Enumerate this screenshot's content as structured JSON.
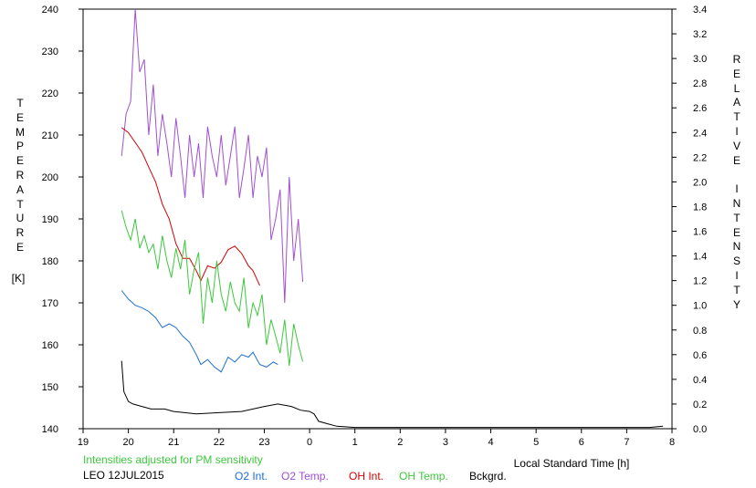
{
  "chart_data": {
    "type": "line",
    "title": "",
    "xlabel": "Local Standard Time [h]",
    "ylabel_left": "TEMPERATURE",
    "ylabel_left_unit": "[K]",
    "ylabel_right": "RELATIVE INTENSITY",
    "x_range": [
      19,
      32
    ],
    "x_tick_values": [
      19,
      20,
      21,
      22,
      23,
      24,
      25,
      26,
      27,
      28,
      29,
      30,
      31,
      32
    ],
    "x_tick_labels": [
      "19",
      "20",
      "21",
      "22",
      "23",
      "0",
      "1",
      "2",
      "3",
      "4",
      "5",
      "6",
      "7",
      "8"
    ],
    "ylim_left": [
      140,
      240
    ],
    "y_ticks_left": [
      "140",
      "150",
      "160",
      "170",
      "180",
      "190",
      "200",
      "210",
      "220",
      "230",
      "240"
    ],
    "ylim_right": [
      0.0,
      3.4
    ],
    "y_ticks_right": [
      "0.0",
      "0.2",
      "0.4",
      "0.6",
      "0.8",
      "1.0",
      "1.2",
      "1.4",
      "1.6",
      "1.8",
      "2.0",
      "2.2",
      "2.4",
      "2.6",
      "2.8",
      "3.0",
      "3.2",
      "3.4"
    ],
    "grid": false,
    "legend_placement": "bottom",
    "series": [
      {
        "name": "O2 Int.",
        "color": "#1e6ed2",
        "axis": "right",
        "x": [
          19.85,
          20.0,
          20.15,
          20.3,
          20.45,
          20.6,
          20.75,
          20.9,
          21.05,
          21.2,
          21.35,
          21.5,
          21.6,
          21.75,
          21.9,
          22.05,
          22.2,
          22.35,
          22.5,
          22.65,
          22.75,
          22.9,
          23.05,
          23.2,
          23.3
        ],
        "y": [
          1.12,
          1.05,
          1.0,
          0.98,
          0.95,
          0.9,
          0.82,
          0.85,
          0.82,
          0.75,
          0.7,
          0.6,
          0.52,
          0.56,
          0.5,
          0.46,
          0.58,
          0.54,
          0.6,
          0.58,
          0.62,
          0.52,
          0.5,
          0.54,
          0.52
        ]
      },
      {
        "name": "O2 Temp.",
        "color": "#a050d2",
        "axis": "left",
        "x": [
          19.85,
          19.95,
          20.05,
          20.15,
          20.25,
          20.35,
          20.45,
          20.55,
          20.65,
          20.75,
          20.85,
          20.95,
          21.05,
          21.15,
          21.25,
          21.35,
          21.45,
          21.55,
          21.65,
          21.75,
          21.85,
          21.95,
          22.05,
          22.15,
          22.25,
          22.35,
          22.45,
          22.55,
          22.65,
          22.75,
          22.85,
          22.95,
          23.05,
          23.15,
          23.25,
          23.35,
          23.45,
          23.55,
          23.65,
          23.75,
          23.85
        ],
        "y": [
          205,
          215,
          218,
          240,
          225,
          228,
          210,
          222,
          205,
          215,
          208,
          200,
          214,
          205,
          195,
          210,
          200,
          208,
          195,
          212,
          205,
          200,
          210,
          198,
          205,
          212,
          195,
          202,
          210,
          195,
          205,
          200,
          207,
          185,
          190,
          197,
          170,
          200,
          180,
          190,
          175
        ]
      },
      {
        "name": "OH Int.",
        "color": "#d20000",
        "axis": "right",
        "x": [
          19.85,
          20.0,
          20.15,
          20.3,
          20.45,
          20.6,
          20.75,
          20.9,
          21.05,
          21.2,
          21.35,
          21.5,
          21.6,
          21.75,
          21.9,
          22.05,
          22.2,
          22.35,
          22.5,
          22.65,
          22.75,
          22.9
        ],
        "y": [
          2.44,
          2.4,
          2.32,
          2.24,
          2.12,
          2.0,
          1.82,
          1.7,
          1.5,
          1.38,
          1.38,
          1.28,
          1.2,
          1.32,
          1.3,
          1.35,
          1.45,
          1.48,
          1.42,
          1.32,
          1.28,
          1.16
        ]
      },
      {
        "name": "OH Temp.",
        "color": "#3cc83c",
        "axis": "left",
        "x": [
          19.85,
          19.95,
          20.05,
          20.15,
          20.25,
          20.35,
          20.45,
          20.55,
          20.65,
          20.75,
          20.85,
          20.95,
          21.05,
          21.15,
          21.25,
          21.35,
          21.45,
          21.55,
          21.65,
          21.75,
          21.85,
          21.95,
          22.05,
          22.15,
          22.25,
          22.35,
          22.45,
          22.55,
          22.65,
          22.75,
          22.85,
          22.95,
          23.05,
          23.15,
          23.25,
          23.35,
          23.45,
          23.55,
          23.65,
          23.75,
          23.85
        ],
        "y": [
          192,
          188,
          185,
          190,
          183,
          186,
          182,
          184,
          178,
          186,
          180,
          176,
          183,
          178,
          185,
          172,
          178,
          182,
          165,
          176,
          170,
          180,
          172,
          168,
          175,
          170,
          168,
          176,
          164,
          170,
          167,
          172,
          160,
          166,
          162,
          158,
          166,
          155,
          165,
          160,
          156
        ]
      },
      {
        "name": "Bckgrd.",
        "color": "#000000",
        "axis": "right",
        "x": [
          19.85,
          19.9,
          20.0,
          20.1,
          20.3,
          20.5,
          20.8,
          21.0,
          21.5,
          22.0,
          22.5,
          23.0,
          23.3,
          23.6,
          23.8,
          24.0,
          24.1,
          24.2,
          24.4,
          24.6,
          25.0,
          26.0,
          27.0,
          28.0,
          29.0,
          30.0,
          31.0,
          31.5,
          31.8
        ],
        "y": [
          0.55,
          0.3,
          0.22,
          0.2,
          0.18,
          0.16,
          0.16,
          0.14,
          0.12,
          0.13,
          0.14,
          0.18,
          0.2,
          0.18,
          0.15,
          0.14,
          0.12,
          0.06,
          0.04,
          0.02,
          0.01,
          0.01,
          0.01,
          0.01,
          0.01,
          0.01,
          0.01,
          0.01,
          0.02
        ]
      }
    ]
  },
  "footer": {
    "adjust_note": "Intensities adjusted for PM sensitivity",
    "adjust_note_color": "#3cc83c",
    "station": "LEO 12JUL2015"
  }
}
